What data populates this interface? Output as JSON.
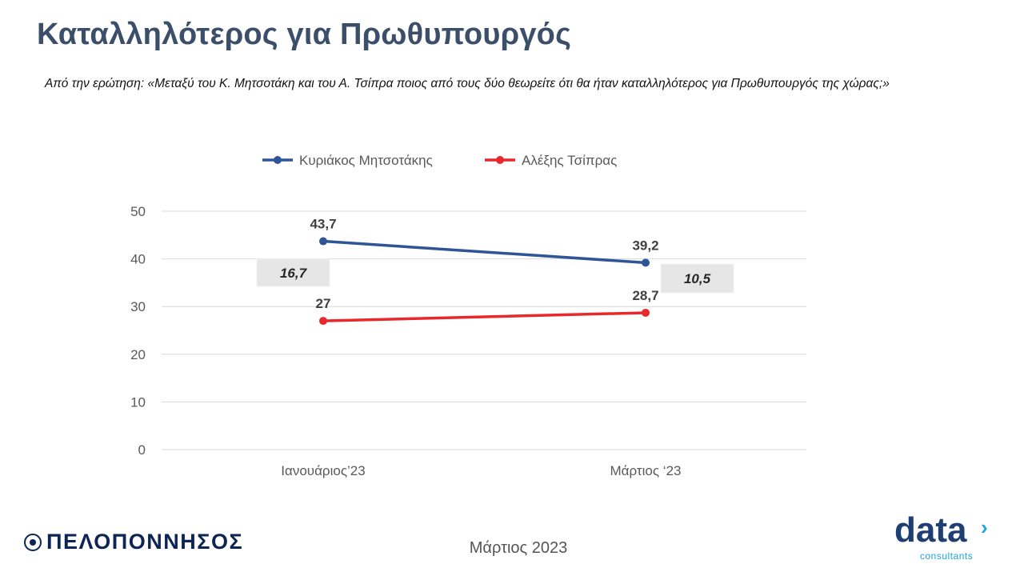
{
  "header": {
    "title": "Καταλληλότερος για Πρωθυπουργός",
    "question": "Από την ερώτηση: «Μεταξύ του Κ. Μητσοτάκη και του Α. Τσίπρα ποιος από τους δύο θεωρείτε ότι θα ήταν καταλληλότερος για Πρωθυπουργός της χώρας;»"
  },
  "chart_data": {
    "type": "line",
    "categories": [
      "Ιανουάριος’23",
      "Μάρτιος ‘23"
    ],
    "series": [
      {
        "name": "Κυριάκος Μητσοτάκης",
        "values": [
          43.7,
          39.2
        ],
        "labels": [
          "43,7",
          "39,2"
        ],
        "color": "#2f5597"
      },
      {
        "name": "Αλέξης Τσίπρας",
        "values": [
          27,
          28.7
        ],
        "labels": [
          "27",
          "28,7"
        ],
        "color": "#e8282b"
      }
    ],
    "differences": [
      "16,7",
      "10,5"
    ],
    "ylim": [
      0,
      50
    ],
    "yticks": [
      0,
      10,
      20,
      30,
      40,
      50
    ],
    "grid": true,
    "legend": "top"
  },
  "footer": {
    "date": "Μάρτιος 2023",
    "left_logo": "ΠΕΛΟΠΟΝΝΗΣΟΣ",
    "right_logo_word": "data",
    "right_logo_sub": "consultants"
  }
}
